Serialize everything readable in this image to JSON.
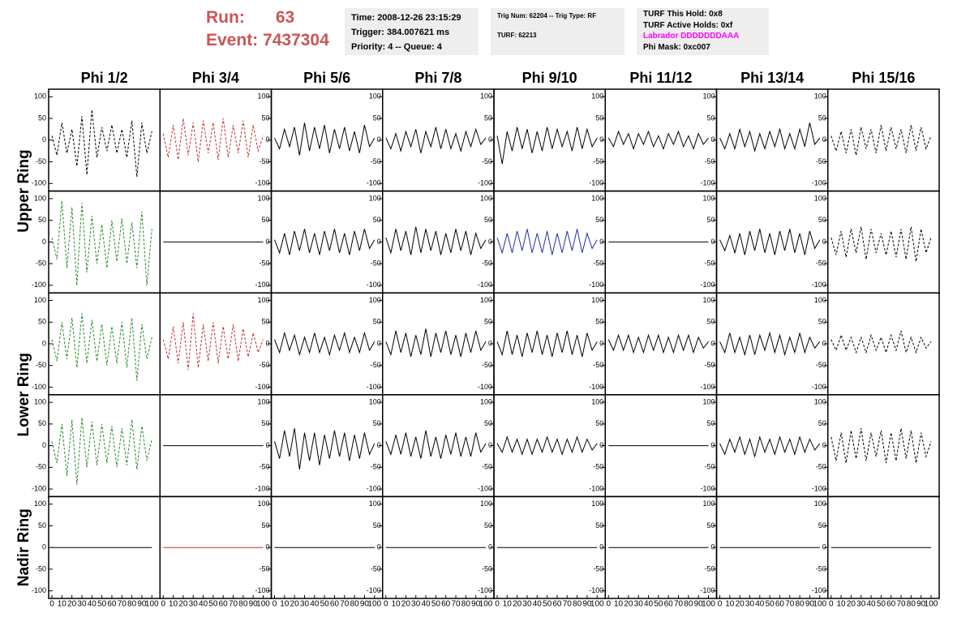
{
  "header": {
    "run_label": "Run:",
    "run": "63",
    "event_label": "Event:",
    "event": "7437304"
  },
  "info": {
    "box1": [
      "Time: 2008-12-26 23:15:29",
      "Trigger: 384.007621 ms",
      "Priority: 4 -- Queue: 4"
    ],
    "box2": [
      "Trig Num: 62204 -- Trig Type: RF",
      "TURF: 62213"
    ],
    "box3": [
      "TURF This Hold: 0x8",
      "TURF Active Holds: 0xf",
      "Labrador DDDDDDDAAA",
      "Phi Mask: 0xc007"
    ]
  },
  "columns": [
    "Phi 1/2",
    "Phi 3/4",
    "Phi 5/6",
    "Phi 7/8",
    "Phi 9/10",
    "Phi 11/12",
    "Phi 13/14",
    "Phi 15/16"
  ],
  "rows": [
    "Upper Ring",
    "Lower Ring",
    "Nadir Ring"
  ],
  "axes": {
    "xlim": [
      0,
      100
    ],
    "ylim": [
      -110,
      110
    ],
    "yticks": [
      -100,
      -50,
      0,
      50,
      100
    ],
    "xticks": [
      0,
      10,
      20,
      30,
      40,
      50,
      60,
      70,
      80,
      90,
      100
    ]
  },
  "x": [
    0,
    5,
    10,
    15,
    20,
    25,
    30,
    35,
    40,
    45,
    50,
    55,
    60,
    65,
    70,
    75,
    80,
    85,
    90,
    95,
    100
  ],
  "panels": [
    [
      {
        "color": "#000000",
        "dash": true,
        "values": [
          10,
          -35,
          40,
          -30,
          25,
          -60,
          55,
          -80,
          70,
          -40,
          30,
          -25,
          35,
          -30,
          25,
          -40,
          45,
          -85,
          40,
          -30,
          20
        ]
      },
      {
        "color": "#c03030",
        "dash": true,
        "values": [
          15,
          -40,
          35,
          -45,
          50,
          -35,
          40,
          -50,
          45,
          -30,
          40,
          -45,
          50,
          -40,
          35,
          -30,
          45,
          -40,
          35,
          -25,
          10
        ]
      },
      {
        "color": "#000000",
        "dash": false,
        "values": [
          5,
          -20,
          25,
          -15,
          30,
          -35,
          40,
          -25,
          30,
          -20,
          35,
          -30,
          25,
          -20,
          30,
          -25,
          20,
          -30,
          35,
          -15,
          5
        ]
      },
      {
        "color": "#000000",
        "dash": false,
        "values": [
          5,
          -20,
          15,
          -25,
          20,
          -15,
          25,
          -30,
          20,
          -15,
          30,
          -20,
          25,
          -20,
          15,
          -25,
          20,
          -15,
          25,
          -10,
          5
        ]
      },
      {
        "color": "#000000",
        "dash": false,
        "values": [
          10,
          -55,
          20,
          -25,
          30,
          -20,
          25,
          -30,
          20,
          -25,
          30,
          -20,
          25,
          -15,
          20,
          -25,
          30,
          -20,
          25,
          -15,
          5
        ]
      },
      {
        "color": "#000000",
        "dash": false,
        "values": [
          5,
          -15,
          20,
          -10,
          15,
          -20,
          15,
          -10,
          20,
          -15,
          10,
          -20,
          15,
          -10,
          20,
          -15,
          10,
          -20,
          15,
          -10,
          5
        ]
      },
      {
        "color": "#000000",
        "dash": false,
        "values": [
          5,
          -20,
          15,
          -20,
          25,
          -15,
          20,
          -25,
          15,
          -20,
          20,
          -15,
          25,
          -20,
          15,
          -20,
          25,
          -15,
          40,
          -10,
          5
        ]
      },
      {
        "color": "#000000",
        "dash": true,
        "values": [
          10,
          -25,
          20,
          -30,
          25,
          -35,
          30,
          -20,
          25,
          -30,
          35,
          -25,
          30,
          -20,
          25,
          -30,
          35,
          -25,
          30,
          -20,
          10
        ]
      }
    ],
    [
      {
        "color": "#228b22",
        "dash": true,
        "values": [
          10,
          -40,
          95,
          -60,
          80,
          -100,
          90,
          -70,
          60,
          -50,
          40,
          -60,
          50,
          -45,
          55,
          -50,
          45,
          -60,
          70,
          -100,
          30
        ]
      },
      {
        "color": "#000000",
        "dash": false,
        "values": [
          0,
          0,
          0,
          0,
          0,
          0,
          0,
          0,
          0,
          0,
          0,
          0,
          0,
          0,
          0,
          0,
          0,
          0,
          0,
          0,
          0
        ]
      },
      {
        "color": "#000000",
        "dash": false,
        "values": [
          5,
          -25,
          20,
          -30,
          25,
          -20,
          30,
          -25,
          20,
          -30,
          25,
          -20,
          30,
          -25,
          20,
          -30,
          25,
          -20,
          30,
          -15,
          5
        ]
      },
      {
        "color": "#000000",
        "dash": false,
        "values": [
          10,
          -25,
          30,
          -20,
          25,
          -30,
          35,
          -25,
          30,
          -20,
          25,
          -30,
          20,
          -25,
          30,
          -20,
          25,
          -30,
          20,
          -15,
          5
        ]
      },
      {
        "color": "#2030a0",
        "dash": false,
        "values": [
          10,
          -25,
          20,
          -25,
          25,
          -20,
          30,
          -25,
          20,
          -25,
          25,
          -30,
          20,
          -25,
          25,
          -20,
          30,
          -25,
          20,
          -15,
          5
        ]
      },
      {
        "color": "#000000",
        "dash": false,
        "values": [
          0,
          0,
          0,
          0,
          0,
          0,
          0,
          0,
          0,
          0,
          0,
          0,
          0,
          0,
          0,
          0,
          0,
          0,
          0,
          0,
          0
        ]
      },
      {
        "color": "#000000",
        "dash": false,
        "values": [
          5,
          -20,
          15,
          -25,
          20,
          -30,
          25,
          -20,
          30,
          -25,
          20,
          -30,
          25,
          -20,
          30,
          -25,
          20,
          -30,
          25,
          -15,
          5
        ]
      },
      {
        "color": "#000000",
        "dash": true,
        "values": [
          10,
          -30,
          25,
          -35,
          30,
          -25,
          35,
          -40,
          30,
          -25,
          20,
          -30,
          25,
          -35,
          30,
          -40,
          35,
          -45,
          30,
          -25,
          10
        ]
      }
    ],
    [
      {
        "color": "#228b22",
        "dash": true,
        "values": [
          10,
          -40,
          50,
          -35,
          60,
          -55,
          70,
          -45,
          55,
          -40,
          45,
          -50,
          40,
          -45,
          50,
          -55,
          60,
          -85,
          45,
          -35,
          15
        ]
      },
      {
        "color": "#c03030",
        "dash": true,
        "values": [
          10,
          -35,
          40,
          -45,
          50,
          -60,
          70,
          -55,
          45,
          -40,
          50,
          -45,
          40,
          -35,
          45,
          -40,
          35,
          -30,
          25,
          -20,
          10
        ]
      },
      {
        "color": "#000000",
        "dash": false,
        "values": [
          10,
          -20,
          25,
          -15,
          20,
          -25,
          15,
          -20,
          25,
          -20,
          15,
          -25,
          20,
          -15,
          25,
          -20,
          15,
          -20,
          25,
          -15,
          5
        ]
      },
      {
        "color": "#000000",
        "dash": false,
        "values": [
          5,
          -25,
          30,
          -20,
          25,
          -30,
          20,
          -25,
          35,
          -30,
          25,
          -20,
          30,
          -25,
          20,
          -30,
          25,
          -20,
          30,
          -15,
          5
        ]
      },
      {
        "color": "#000000",
        "dash": false,
        "values": [
          5,
          -25,
          30,
          -25,
          20,
          -30,
          25,
          -20,
          30,
          -25,
          20,
          -30,
          25,
          -20,
          30,
          -25,
          20,
          -30,
          25,
          -15,
          5
        ]
      },
      {
        "color": "#000000",
        "dash": false,
        "values": [
          10,
          -15,
          20,
          -15,
          20,
          -20,
          15,
          -20,
          20,
          -15,
          20,
          -20,
          15,
          -20,
          20,
          -15,
          20,
          -20,
          15,
          -10,
          5
        ]
      },
      {
        "color": "#000000",
        "dash": false,
        "values": [
          5,
          -20,
          25,
          -20,
          15,
          -25,
          20,
          -25,
          20,
          -15,
          25,
          -20,
          20,
          -25,
          15,
          -20,
          25,
          -20,
          15,
          -10,
          5
        ]
      },
      {
        "color": "#000000",
        "dash": true,
        "values": [
          10,
          -15,
          20,
          -15,
          15,
          -20,
          15,
          -20,
          20,
          -15,
          15,
          -20,
          20,
          -15,
          30,
          -20,
          15,
          -20,
          15,
          -10,
          5
        ]
      }
    ],
    [
      {
        "color": "#228b22",
        "dash": true,
        "values": [
          10,
          -40,
          50,
          -70,
          60,
          -90,
          65,
          -50,
          55,
          -45,
          50,
          -40,
          45,
          -50,
          40,
          -45,
          60,
          -55,
          45,
          -35,
          15
        ]
      },
      {
        "color": "#000000",
        "dash": false,
        "values": [
          0,
          0,
          0,
          0,
          0,
          0,
          0,
          0,
          0,
          0,
          0,
          0,
          0,
          0,
          0,
          0,
          0,
          0,
          0,
          0,
          0
        ]
      },
      {
        "color": "#000000",
        "dash": false,
        "values": [
          10,
          -30,
          35,
          -25,
          40,
          -55,
          30,
          -35,
          30,
          -45,
          25,
          -30,
          35,
          -25,
          30,
          -35,
          25,
          -30,
          30,
          -20,
          5
        ]
      },
      {
        "color": "#000000",
        "dash": false,
        "values": [
          10,
          -20,
          25,
          -20,
          30,
          -25,
          20,
          -30,
          35,
          -25,
          20,
          -30,
          25,
          -20,
          30,
          -25,
          20,
          -25,
          30,
          -15,
          5
        ]
      },
      {
        "color": "#000000",
        "dash": false,
        "values": [
          5,
          -15,
          20,
          -15,
          15,
          -20,
          15,
          -20,
          15,
          -15,
          20,
          -15,
          15,
          -20,
          15,
          -15,
          20,
          -15,
          15,
          -10,
          5
        ]
      },
      {
        "color": "#000000",
        "dash": false,
        "values": [
          0,
          0,
          0,
          0,
          0,
          0,
          0,
          0,
          0,
          0,
          0,
          0,
          0,
          0,
          0,
          0,
          0,
          0,
          0,
          0,
          0
        ]
      },
      {
        "color": "#000000",
        "dash": false,
        "values": [
          5,
          -20,
          15,
          -15,
          20,
          -20,
          15,
          -25,
          20,
          -15,
          15,
          -20,
          20,
          -15,
          15,
          -20,
          20,
          -15,
          15,
          -10,
          5
        ]
      },
      {
        "color": "#000000",
        "dash": true,
        "values": [
          20,
          -35,
          30,
          -40,
          35,
          -30,
          40,
          -35,
          30,
          -25,
          35,
          -40,
          30,
          -35,
          40,
          -30,
          35,
          -40,
          30,
          -25,
          10
        ]
      }
    ],
    [
      {
        "color": "#000000",
        "dash": false,
        "values": [
          0,
          0,
          0,
          0,
          0,
          0,
          0,
          0,
          0,
          0,
          0,
          0,
          0,
          0,
          0,
          0,
          0,
          0,
          0,
          0,
          0
        ]
      },
      {
        "color": "#c03030",
        "dash": false,
        "values": [
          0,
          0,
          0,
          0,
          0,
          0,
          0,
          0,
          0,
          0,
          0,
          0,
          0,
          0,
          0,
          0,
          0,
          0,
          0,
          0,
          0
        ]
      },
      {
        "color": "#000000",
        "dash": false,
        "values": [
          0,
          0,
          0,
          0,
          0,
          0,
          0,
          0,
          0,
          0,
          0,
          0,
          0,
          0,
          0,
          0,
          0,
          0,
          0,
          0,
          0
        ]
      },
      {
        "color": "#000000",
        "dash": false,
        "values": [
          0,
          0,
          0,
          0,
          0,
          0,
          0,
          0,
          0,
          0,
          0,
          0,
          0,
          0,
          0,
          0,
          0,
          0,
          0,
          0,
          0
        ]
      },
      {
        "color": "#000000",
        "dash": false,
        "values": [
          0,
          0,
          0,
          0,
          0,
          0,
          0,
          0,
          0,
          0,
          0,
          0,
          0,
          0,
          0,
          0,
          0,
          0,
          0,
          0,
          0
        ]
      },
      {
        "color": "#000000",
        "dash": false,
        "values": [
          0,
          0,
          0,
          0,
          0,
          0,
          0,
          0,
          0,
          0,
          0,
          0,
          0,
          0,
          0,
          0,
          0,
          0,
          0,
          0,
          0
        ]
      },
      {
        "color": "#000000",
        "dash": false,
        "values": [
          0,
          0,
          0,
          0,
          0,
          0,
          0,
          0,
          0,
          0,
          0,
          0,
          0,
          0,
          0,
          0,
          0,
          0,
          0,
          0,
          0
        ]
      },
      {
        "color": "#000000",
        "dash": false,
        "values": [
          0,
          0,
          0,
          0,
          0,
          0,
          0,
          0,
          0,
          0,
          0,
          0,
          0,
          0,
          0,
          0,
          0,
          0,
          0,
          0,
          0
        ]
      }
    ]
  ]
}
